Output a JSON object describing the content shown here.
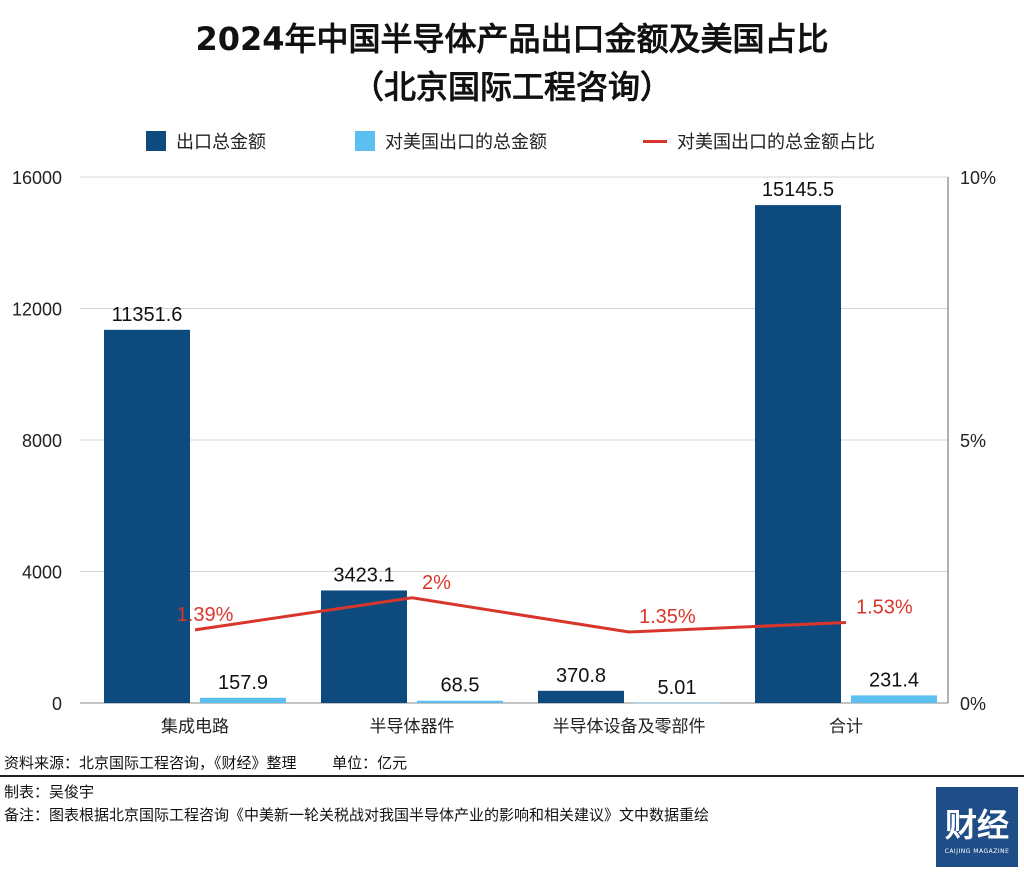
{
  "chart_data": {
    "type": "bar",
    "title": "2024年中国半导体产品出口金额及美国占比",
    "subtitle": "（北京国际工程咨询）",
    "categories": [
      "集成电路",
      "半导体器件",
      "半导体设备及零部件",
      "合计"
    ],
    "series": [
      {
        "name": "出口总金额",
        "type": "bar",
        "color": "#0d4a7e",
        "values": [
          11351.6,
          3423.1,
          370.8,
          15145.5
        ],
        "labels": [
          "11351.6",
          "3423.1",
          "370.8",
          "15145.5"
        ]
      },
      {
        "name": "对美国出口的总金额",
        "type": "bar",
        "color": "#5bc0f0",
        "values": [
          157.9,
          68.5,
          5.01,
          231.4
        ],
        "labels": [
          "157.9",
          "68.5",
          "5.01",
          "231.4"
        ]
      },
      {
        "name": "对美国出口的总金额占比",
        "type": "line",
        "axis": "right",
        "color": "#d9362b",
        "values": [
          1.39,
          2,
          1.35,
          1.53
        ],
        "labels": [
          "1.39%",
          "2%",
          "1.35%",
          "1.53%"
        ]
      }
    ],
    "ylim": [
      0,
      16000
    ],
    "yticks": [
      "0",
      "4000",
      "8000",
      "12000",
      "16000"
    ],
    "y2lim": [
      0,
      10
    ],
    "y2ticks": [
      "0%",
      "5%",
      "10%"
    ],
    "grid": true,
    "legend": "top"
  },
  "footer": {
    "source": "资料来源：北京国际工程咨询，《财经》整理",
    "unit": "单位：亿元",
    "author": "制表：吴俊宇",
    "note": "备注：图表根据北京国际工程咨询《中美新一轮关税战对我国半导体产业的影响和相关建议》文中数据重绘"
  },
  "logo": {
    "text": "财经",
    "sub": "CAIJING MAGAZINE",
    "color": "#1f4d87"
  }
}
